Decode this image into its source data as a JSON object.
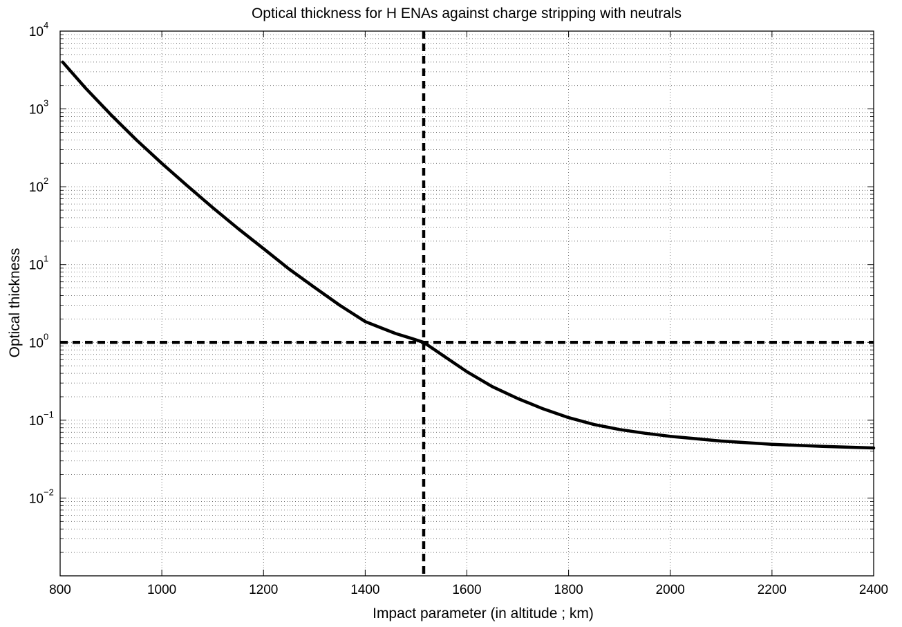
{
  "chart_data": {
    "type": "line",
    "title": "Optical thickness for H ENAs against charge stripping with neutrals",
    "xlabel": "Impact parameter (in altitude ; km)",
    "ylabel": "Optical thickness",
    "xlim": [
      800,
      2400
    ],
    "ylim": [
      0.001,
      10000
    ],
    "yscale": "log",
    "grid": true,
    "x_ticks": [
      800,
      1000,
      1200,
      1400,
      1600,
      1800,
      2000,
      2200,
      2400
    ],
    "y_ticks": [
      {
        "base": "10",
        "exp": "4",
        "value": 10000
      },
      {
        "base": "10",
        "exp": "3",
        "value": 1000
      },
      {
        "base": "10",
        "exp": "2",
        "value": 100
      },
      {
        "base": "10",
        "exp": "1",
        "value": 10
      },
      {
        "base": "10",
        "exp": "0",
        "value": 1
      },
      {
        "base": "10",
        "exp": "−1",
        "value": 0.1
      },
      {
        "base": "10",
        "exp": "−2",
        "value": 0.01
      }
    ],
    "series": [
      {
        "color": "#000000",
        "style": "solid",
        "x": [
          805,
          850,
          900,
          950,
          1000,
          1050,
          1100,
          1150,
          1200,
          1250,
          1300,
          1350,
          1400,
          1430,
          1460,
          1490,
          1515,
          1550,
          1600,
          1650,
          1700,
          1750,
          1800,
          1850,
          1900,
          1950,
          2000,
          2100,
          2200,
          2300,
          2400
        ],
        "y": [
          4000,
          1850,
          840,
          400,
          200,
          103,
          54,
          29,
          16,
          8.8,
          5.1,
          3.0,
          1.85,
          1.55,
          1.3,
          1.13,
          1.0,
          0.7,
          0.42,
          0.27,
          0.19,
          0.14,
          0.108,
          0.088,
          0.076,
          0.068,
          0.062,
          0.054,
          0.049,
          0.046,
          0.044
        ]
      }
    ],
    "reference_lines": [
      {
        "orientation": "horizontal",
        "value": 1,
        "style": "dashed",
        "color": "#000000"
      },
      {
        "orientation": "vertical",
        "value": 1515,
        "style": "dashed",
        "color": "#000000"
      }
    ]
  }
}
